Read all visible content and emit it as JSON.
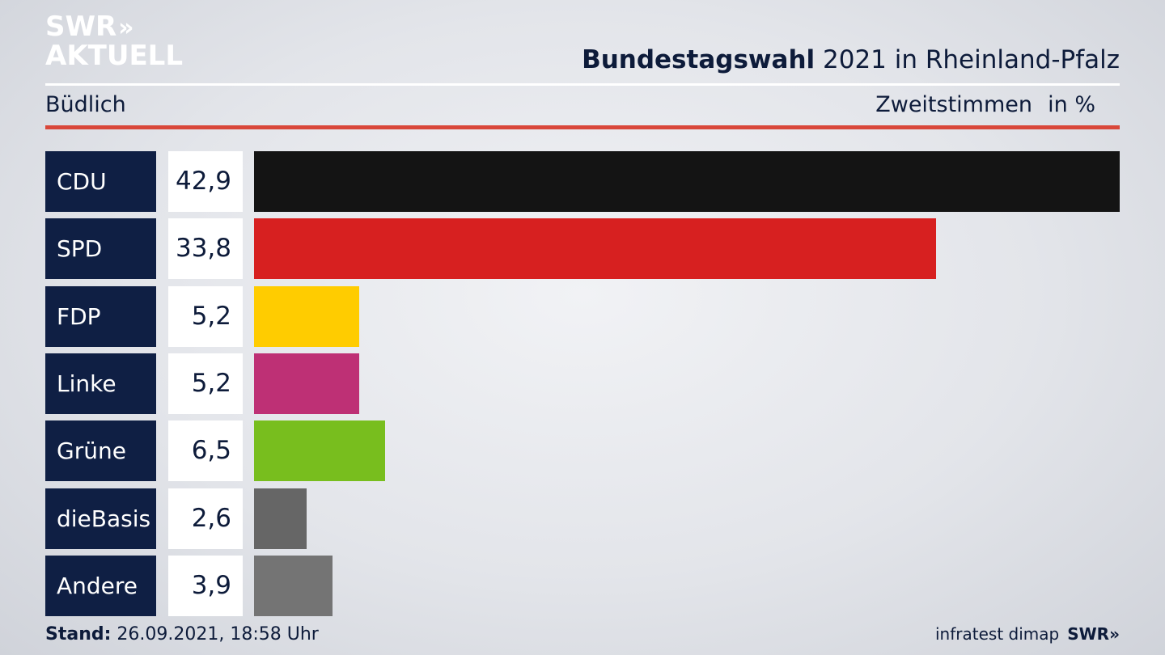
{
  "logo": {
    "line1": "SWR",
    "chevrons": "»",
    "line2": "AKTUELL"
  },
  "header": {
    "title_bold": "Bundestagswahl",
    "title_rest": " 2021 in Rheinland-Pfalz",
    "subtitle": "Büdlich",
    "measure": "Zweitstimmen",
    "unit": "in %"
  },
  "chart_data": {
    "type": "bar",
    "orientation": "horizontal",
    "title": "Bundestagswahl 2021 in Rheinland-Pfalz",
    "subtitle": "Büdlich",
    "xlabel": "Zweitstimmen in %",
    "categories": [
      "CDU",
      "SPD",
      "FDP",
      "Linke",
      "Grüne",
      "dieBasis",
      "Andere"
    ],
    "values": [
      42.9,
      33.8,
      5.2,
      5.2,
      6.5,
      2.6,
      3.9
    ],
    "value_labels": [
      "42,9",
      "33,8",
      "5,2",
      "5,2",
      "6,5",
      "2,6",
      "3,9"
    ],
    "colors": [
      "#141414",
      "#d72020",
      "#ffcc00",
      "#be3075",
      "#78be1e",
      "#666666",
      "#747474"
    ],
    "xlim": [
      0,
      42.9
    ],
    "grid": false
  },
  "footer": {
    "stand_label": "Stand:",
    "stand_value": " 26.09.2021, 18:58 Uhr",
    "source": "infratest dimap",
    "brand": "SWR»"
  }
}
